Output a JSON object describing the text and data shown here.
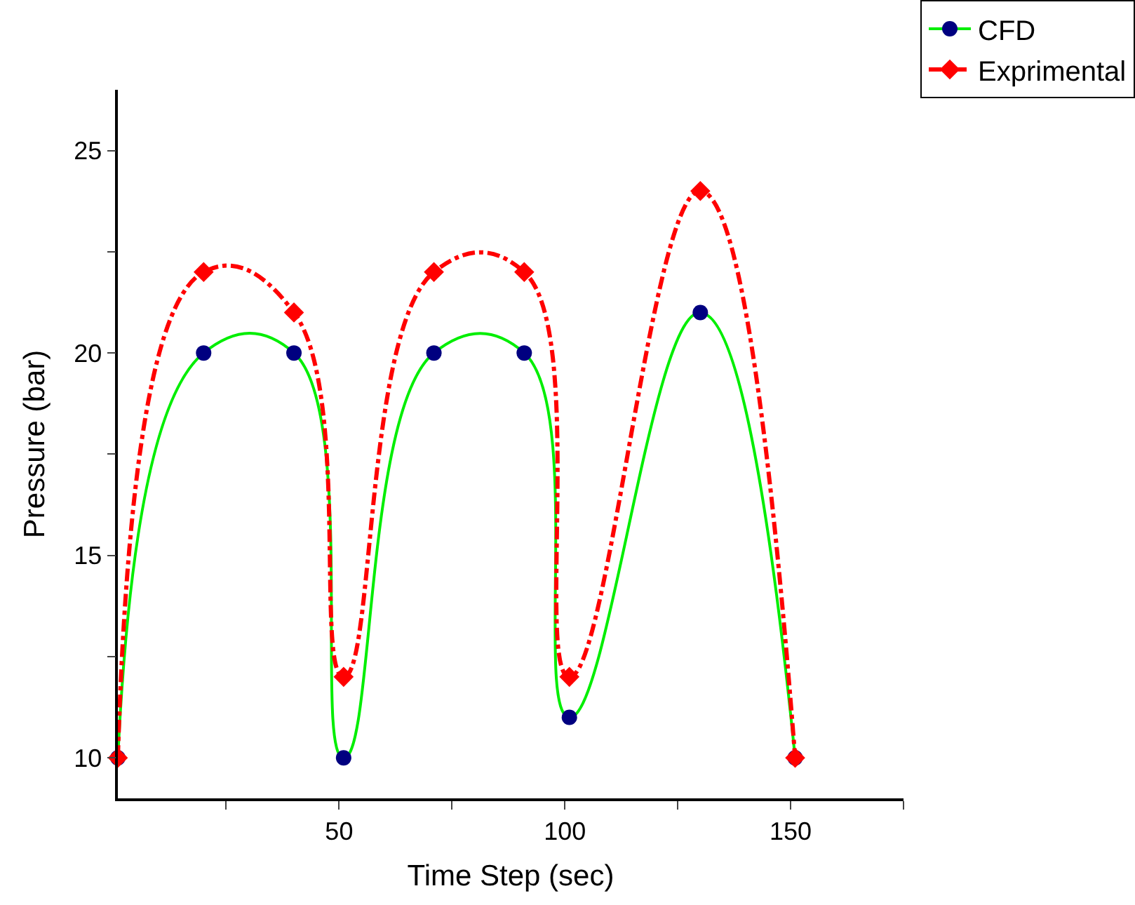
{
  "chart_data": {
    "type": "line",
    "xlabel": "Time Step (sec)",
    "ylabel": "Pressure (bar)",
    "xlim": [
      1,
      175
    ],
    "ylim": [
      9,
      26.5
    ],
    "xticks": [
      {
        "value": 25,
        "label": null
      },
      50,
      {
        "value": 75,
        "label": null
      },
      100,
      {
        "value": 125,
        "label": null
      },
      150,
      {
        "value": 175,
        "label": null
      }
    ],
    "yticks": [
      10,
      {
        "value": 12.5,
        "label": null
      },
      15,
      {
        "value": 17.5,
        "label": null
      },
      20,
      {
        "value": 22.5,
        "label": null
      },
      25
    ],
    "grid": false,
    "legend": "top right",
    "series": [
      {
        "name": "CFD",
        "color": "#00ee00",
        "colors": [
          "#000080",
          "#000080",
          "#000080",
          "#000080",
          "#000080",
          "#000080",
          "#000080",
          "#000080",
          "#000080"
        ],
        "marker": "circle",
        "line_style": "solid",
        "x": [
          1,
          20,
          40,
          51,
          71,
          91,
          101,
          130,
          151
        ],
        "values": [
          10,
          20,
          20,
          10,
          20,
          20,
          11,
          21,
          10
        ]
      },
      {
        "name": "Exprimental",
        "color": "#ff0000",
        "colors": [
          "#ff0000",
          "#ff0000",
          "#ff0000",
          "#ff0000",
          "#ff0000",
          "#ff0000",
          "#ff0000",
          "#ff0000",
          "#ff0000"
        ],
        "marker": "diamond",
        "line_style": "dashed",
        "x": [
          1,
          20,
          40,
          51,
          71,
          91,
          101,
          130,
          151
        ],
        "values": [
          10,
          22,
          21,
          12,
          22,
          22,
          12,
          24,
          10
        ]
      }
    ]
  }
}
